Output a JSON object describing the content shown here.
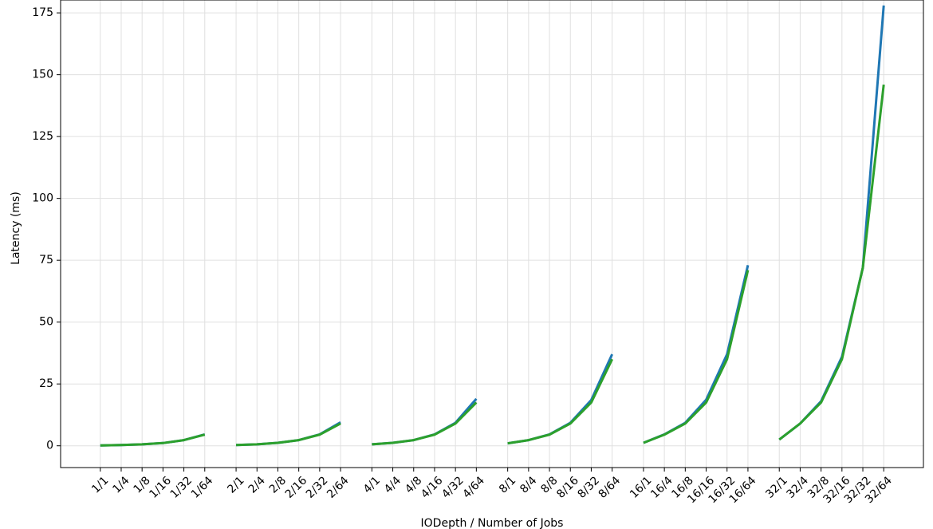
{
  "chart_data": {
    "type": "line",
    "xlabel": "IODepth / Number of Jobs",
    "ylabel": "Latency (ms)",
    "x": [
      0,
      1,
      2,
      3,
      4,
      5,
      null,
      6.5,
      7.5,
      8.5,
      9.5,
      10.5,
      11.5,
      null,
      13,
      14,
      15,
      16,
      17,
      18,
      null,
      19.5,
      20.5,
      21.5,
      22.5,
      23.5,
      24.5,
      null,
      26,
      27,
      28,
      29,
      30,
      31,
      null,
      32.5,
      33.5,
      34.5,
      35.5,
      36.5,
      37.5
    ],
    "series": [
      {
        "color": "#1f77b4",
        "values": [
          0.15,
          0.3,
          0.6,
          1.1,
          2.3,
          4.6,
          null,
          0.3,
          0.6,
          1.2,
          2.3,
          4.6,
          9.5,
          null,
          0.6,
          1.2,
          2.3,
          4.6,
          9.3,
          19,
          null,
          1.0,
          2.3,
          4.6,
          9.3,
          18.5,
          37,
          null,
          1.2,
          4.6,
          9.3,
          18.6,
          37,
          73,
          null,
          2.5,
          9,
          18,
          36,
          72,
          178
        ]
      },
      {
        "color": "#2ca02c",
        "values": [
          0.15,
          0.3,
          0.6,
          1.1,
          2.3,
          4.5,
          null,
          0.3,
          0.6,
          1.2,
          2.3,
          4.5,
          9,
          null,
          0.6,
          1.2,
          2.3,
          4.5,
          9,
          17.5,
          null,
          1.0,
          2.3,
          4.5,
          9,
          17.5,
          35,
          null,
          1.2,
          4.5,
          9,
          17.5,
          35,
          71,
          null,
          2.5,
          9,
          17.5,
          35,
          72,
          146
        ]
      }
    ],
    "xlim": [
      -1.9,
      39.4
    ],
    "ylim": [
      -8.8,
      180.2
    ],
    "yticks": [
      0,
      25,
      50,
      75,
      100,
      125,
      150,
      175
    ],
    "xticks": [
      {
        "value": 0,
        "label": "1/1"
      },
      {
        "value": 1,
        "label": "1/4"
      },
      {
        "value": 2,
        "label": "1/8"
      },
      {
        "value": 3,
        "label": "1/16"
      },
      {
        "value": 4,
        "label": "1/32"
      },
      {
        "value": 5,
        "label": "1/64"
      },
      {
        "value": 6.5,
        "label": "2/1"
      },
      {
        "value": 7.5,
        "label": "2/4"
      },
      {
        "value": 8.5,
        "label": "2/8"
      },
      {
        "value": 9.5,
        "label": "2/16"
      },
      {
        "value": 10.5,
        "label": "2/32"
      },
      {
        "value": 11.5,
        "label": "2/64"
      },
      {
        "value": 13,
        "label": "4/1"
      },
      {
        "value": 14,
        "label": "4/4"
      },
      {
        "value": 15,
        "label": "4/8"
      },
      {
        "value": 16,
        "label": "4/16"
      },
      {
        "value": 17,
        "label": "4/32"
      },
      {
        "value": 18,
        "label": "4/64"
      },
      {
        "value": 19.5,
        "label": "8/1"
      },
      {
        "value": 20.5,
        "label": "8/4"
      },
      {
        "value": 21.5,
        "label": "8/8"
      },
      {
        "value": 22.5,
        "label": "8/16"
      },
      {
        "value": 23.5,
        "label": "8/32"
      },
      {
        "value": 24.5,
        "label": "8/64"
      },
      {
        "value": 26,
        "label": "16/1"
      },
      {
        "value": 27,
        "label": "16/4"
      },
      {
        "value": 28,
        "label": "16/8"
      },
      {
        "value": 29,
        "label": "16/16"
      },
      {
        "value": 30,
        "label": "16/32"
      },
      {
        "value": 31,
        "label": "16/64"
      },
      {
        "value": 32.5,
        "label": "32/1"
      },
      {
        "value": 33.5,
        "label": "32/4"
      },
      {
        "value": 34.5,
        "label": "32/8"
      },
      {
        "value": 35.5,
        "label": "32/16"
      },
      {
        "value": 36.5,
        "label": "32/32"
      },
      {
        "value": 37.5,
        "label": "32/64"
      }
    ],
    "grid": true
  }
}
